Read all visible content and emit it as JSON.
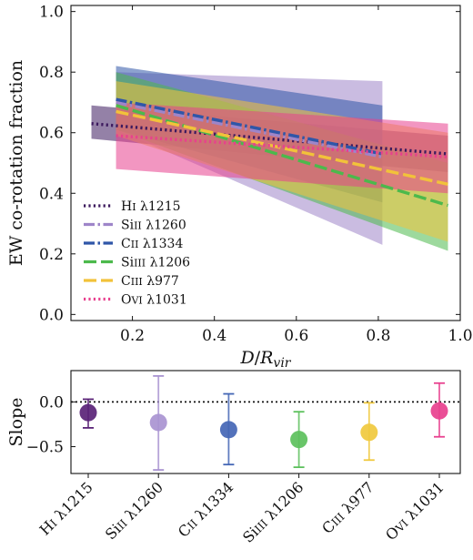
{
  "chart_data": [
    {
      "type": "line",
      "xlabel": "D/R_vir",
      "ylabel": "EW co-rotation fraction",
      "xlim": [
        0.05,
        1.0
      ],
      "ylim": [
        -0.02,
        1.02
      ],
      "x_ticks": [
        "0.2",
        "0.4",
        "0.6",
        "0.8",
        "1.0"
      ],
      "y_ticks": [
        "0.0",
        "0.2",
        "0.4",
        "0.6",
        "0.8",
        "1.0"
      ],
      "legend_position": "lower-left",
      "series": [
        {
          "name": "H I λ1215",
          "label_main": "H",
          "label_sc": "I",
          "label_wl": "λ1215",
          "color": "#3d1a5e",
          "style": "dotted",
          "x": [
            0.1,
            0.97
          ],
          "y": [
            0.63,
            0.53
          ],
          "band_lower": [
            0.58,
            0.47
          ],
          "band_upper": [
            0.69,
            0.59
          ]
        },
        {
          "name": "Si II λ1260",
          "label_main": "Si",
          "label_sc": "II",
          "label_wl": "λ1260",
          "color": "#9e85c9",
          "style": "dashdot",
          "x": [
            0.16,
            0.81
          ],
          "y": [
            0.7,
            0.52
          ],
          "band_lower": [
            0.61,
            0.23
          ],
          "band_upper": [
            0.8,
            0.77
          ]
        },
        {
          "name": "C II λ1334",
          "label_main": "C",
          "label_sc": "II",
          "label_wl": "λ1334",
          "color": "#2f56a8",
          "style": "dashdot",
          "x": [
            0.16,
            0.81
          ],
          "y": [
            0.71,
            0.53
          ],
          "band_lower": [
            0.61,
            0.37
          ],
          "band_upper": [
            0.82,
            0.69
          ]
        },
        {
          "name": "Si III λ1206",
          "label_main": "Si",
          "label_sc": "III",
          "label_wl": "λ1206",
          "color": "#4cb94c",
          "style": "dashed",
          "x": [
            0.16,
            0.97
          ],
          "y": [
            0.69,
            0.36
          ],
          "band_lower": [
            0.61,
            0.21
          ],
          "band_upper": [
            0.8,
            0.5
          ]
        },
        {
          "name": "C III λ977",
          "label_main": "C",
          "label_sc": "III",
          "label_wl": "λ977",
          "color": "#f2c23a",
          "style": "dashed",
          "x": [
            0.16,
            0.97
          ],
          "y": [
            0.67,
            0.43
          ],
          "band_lower": [
            0.59,
            0.24
          ],
          "band_upper": [
            0.77,
            0.6
          ]
        },
        {
          "name": "O VI λ1031",
          "label_main": "O",
          "label_sc": "VI",
          "label_wl": "λ1031",
          "color": "#e8408e",
          "style": "dotted",
          "x": [
            0.16,
            0.97
          ],
          "y": [
            0.59,
            0.52
          ],
          "band_lower": [
            0.48,
            0.4
          ],
          "band_upper": [
            0.7,
            0.63
          ]
        }
      ]
    },
    {
      "type": "scatter",
      "ylabel": "Slope",
      "ylim": [
        -0.8,
        0.35
      ],
      "y_ticks": [
        "0.0",
        "−0.5"
      ],
      "reference_line": 0.0,
      "categories": [
        {
          "main": "H",
          "sc": "I",
          "wl": "λ1215"
        },
        {
          "main": "Si",
          "sc": "II",
          "wl": "λ1260"
        },
        {
          "main": "C",
          "sc": "II",
          "wl": "λ1334"
        },
        {
          "main": "Si",
          "sc": "III",
          "wl": "λ1206"
        },
        {
          "main": "C",
          "sc": "III",
          "wl": "λ977"
        },
        {
          "main": "O",
          "sc": "VI",
          "wl": "λ1031"
        }
      ],
      "values": [
        -0.12,
        -0.23,
        -0.31,
        -0.42,
        -0.34,
        -0.1
      ],
      "err_low": [
        -0.29,
        -0.76,
        -0.7,
        -0.73,
        -0.65,
        -0.39
      ],
      "err_high": [
        0.03,
        0.29,
        0.09,
        -0.11,
        -0.01,
        0.21
      ],
      "colors": [
        "#5a2377",
        "#a994d1",
        "#4466b5",
        "#5cc05c",
        "#f0c93e",
        "#e8408e"
      ]
    }
  ]
}
